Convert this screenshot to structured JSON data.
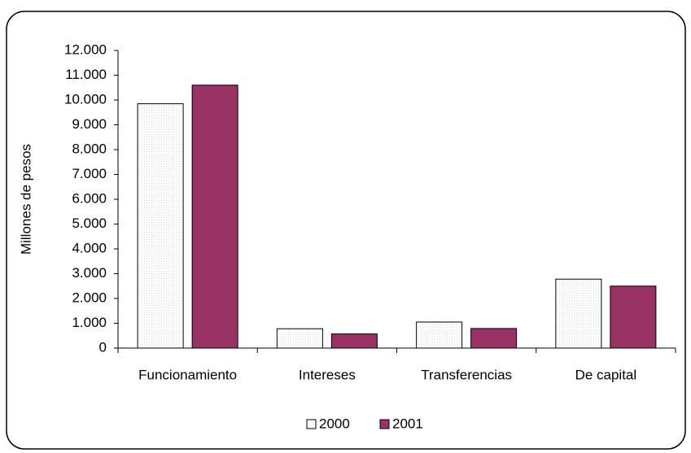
{
  "chart_data": {
    "type": "bar",
    "y_label": "Millones de pesos",
    "categories": [
      "Funcionamiento",
      "Intereses",
      "Transferencias",
      "De capital"
    ],
    "series": [
      {
        "name": "2000",
        "color": "#ffffff",
        "values": [
          9850,
          780,
          1050,
          2780
        ]
      },
      {
        "name": "2001",
        "color": "#993366",
        "values": [
          10600,
          570,
          790,
          2500
        ]
      }
    ],
    "ylim": [
      0,
      12000
    ],
    "yticks": [
      0,
      {
        "value": 1000,
        "label": "1.000"
      },
      {
        "value": 2000,
        "label": "2.000"
      },
      {
        "value": 3000,
        "label": "3.000"
      },
      {
        "value": 4000,
        "label": "4.000"
      },
      {
        "value": 5000,
        "label": "5.000"
      },
      {
        "value": 6000,
        "label": "6.000"
      },
      {
        "value": 7000,
        "label": "7.000"
      },
      {
        "value": 8000,
        "label": "8.000"
      },
      {
        "value": 9000,
        "label": "9.000"
      },
      {
        "value": 10000,
        "label": "10.000"
      },
      {
        "value": 11000,
        "label": "11.000"
      },
      {
        "value": 12000,
        "label": "12.000"
      }
    ],
    "grid": false,
    "legend": "bottom"
  }
}
